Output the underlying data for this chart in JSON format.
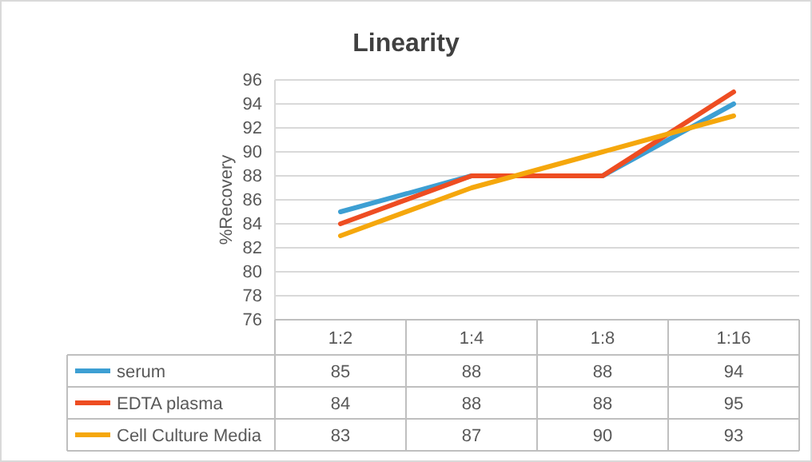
{
  "chart_data": {
    "type": "line",
    "title": "Linearity",
    "ylabel": "%Recovery",
    "categories": [
      "1:2",
      "1:4",
      "1:8",
      "1:16"
    ],
    "series": [
      {
        "name": "serum",
        "color": "#3d9fd3",
        "values": [
          85,
          88,
          88,
          94
        ]
      },
      {
        "name": "EDTA plasma",
        "color": "#ee4d22",
        "values": [
          84,
          88,
          88,
          95
        ]
      },
      {
        "name": "Cell Culture Media",
        "color": "#f5a70c",
        "values": [
          83,
          87,
          90,
          93
        ]
      }
    ],
    "ylim": [
      76,
      96
    ],
    "yticks": [
      76,
      78,
      80,
      82,
      84,
      86,
      88,
      90,
      92,
      94,
      96
    ],
    "grid": "y",
    "legend": "bottom",
    "data_labels": true,
    "marker": "none",
    "line_style": "solid"
  }
}
